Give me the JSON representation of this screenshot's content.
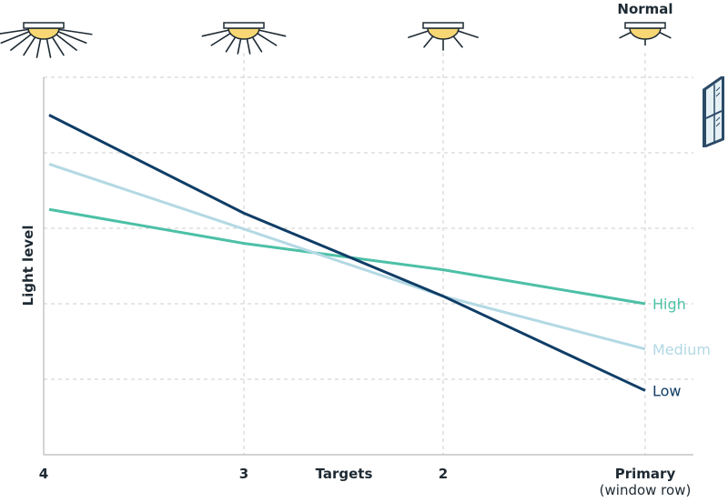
{
  "chart_data": {
    "type": "line",
    "ylabel": "Light level",
    "xlabel": "Targets",
    "categories": [
      "4",
      "3",
      "2",
      "Primary"
    ],
    "category_sublabels": [
      "",
      "",
      "",
      "(window row)"
    ],
    "top_label": "Normal",
    "x": [
      0,
      1,
      2,
      3
    ],
    "ylim": [
      0,
      5
    ],
    "grid": true,
    "series": [
      {
        "name": "High",
        "color": "#4cc0a6",
        "values": [
          3.25,
          2.8,
          2.45,
          2.0
        ]
      },
      {
        "name": "Medium",
        "color": "#b3d9e4",
        "values": [
          3.85,
          2.99,
          2.1,
          1.4
        ]
      },
      {
        "name": "Low",
        "color": "#0f3d66",
        "values": [
          4.5,
          3.2,
          2.1,
          0.85
        ]
      }
    ],
    "light_levels": [
      4,
      3,
      2,
      1
    ],
    "icons": [
      "ceiling-light-icon",
      "window-icon"
    ]
  }
}
